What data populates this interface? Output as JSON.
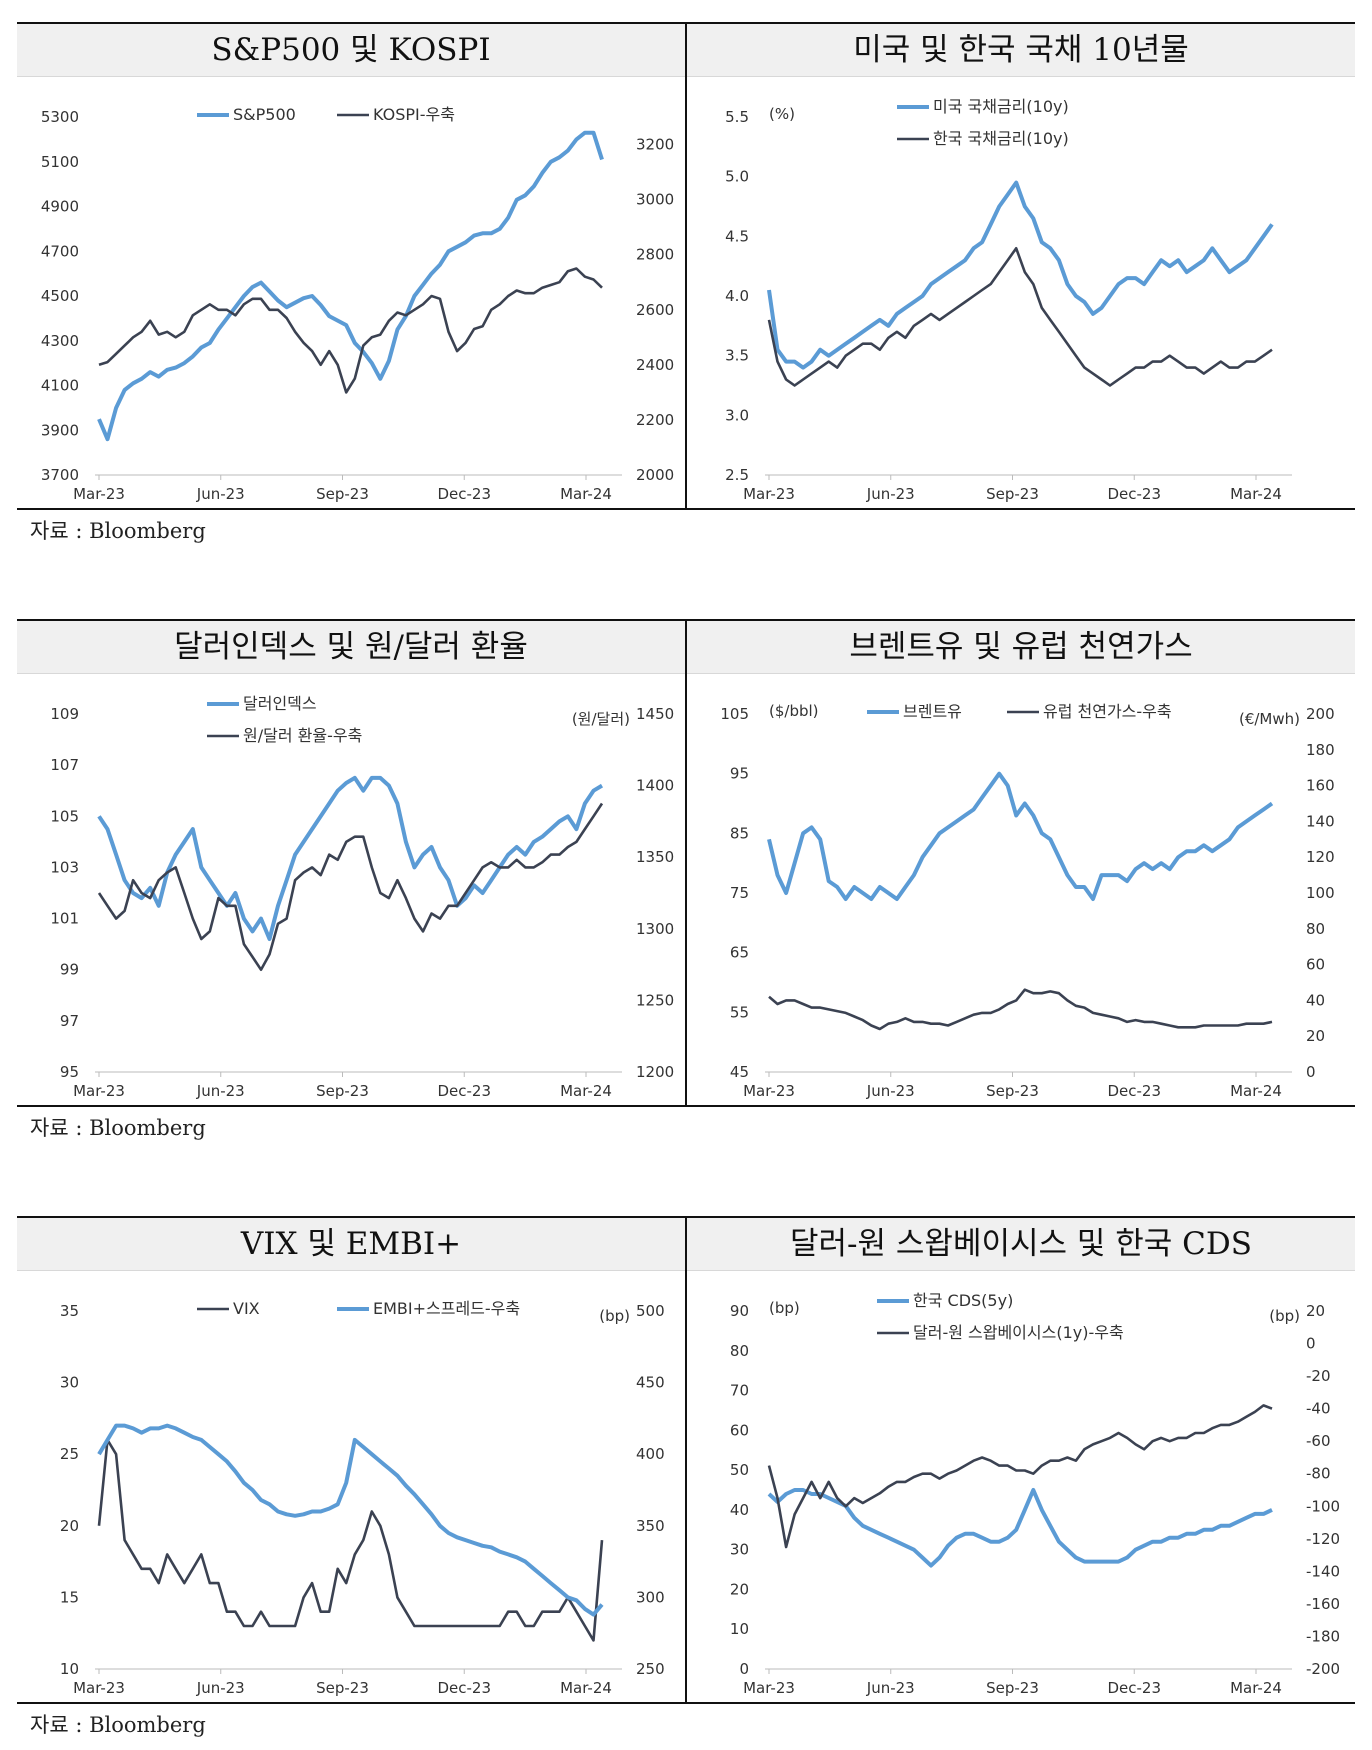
{
  "source_note": "자료 : Bloomberg",
  "colors": {
    "blue": "#5b9bd5",
    "dark": "#3b4252"
  },
  "chart_data": [
    {
      "id": "c1",
      "type": "line",
      "title": "S&P500 및 KOSPI",
      "x_ticks": [
        "Mar-23",
        "Jun-23",
        "Sep-23",
        "Dec-23",
        "Mar-24"
      ],
      "left_axis": {
        "min": 3700,
        "max": 5300,
        "ticks": [
          "3700",
          "3900",
          "4100",
          "4300",
          "4500",
          "4700",
          "4900",
          "5100",
          "5300"
        ]
      },
      "right_axis": {
        "min": 2000,
        "max": 3300,
        "ticks": [
          "2000",
          "2200",
          "2400",
          "2600",
          "2800",
          "3000",
          "3200"
        ]
      },
      "unit_left": "",
      "unit_right": "",
      "series": [
        {
          "name": "S&P500",
          "color": "blue",
          "axis": "left",
          "values": [
            3950,
            3860,
            4000,
            4080,
            4110,
            4130,
            4160,
            4140,
            4170,
            4180,
            4200,
            4230,
            4270,
            4290,
            4350,
            4400,
            4450,
            4500,
            4540,
            4560,
            4520,
            4480,
            4450,
            4470,
            4490,
            4500,
            4460,
            4410,
            4390,
            4370,
            4290,
            4250,
            4200,
            4130,
            4210,
            4350,
            4410,
            4500,
            4550,
            4600,
            4640,
            4700,
            4720,
            4740,
            4770,
            4780,
            4780,
            4800,
            4850,
            4930,
            4950,
            4990,
            5050,
            5100,
            5120,
            5150,
            5200,
            5230,
            5230,
            5110
          ]
        },
        {
          "name": "KOSPI-우축",
          "color": "dark",
          "axis": "right",
          "values": [
            2400,
            2410,
            2440,
            2470,
            2500,
            2520,
            2560,
            2510,
            2520,
            2500,
            2520,
            2580,
            2600,
            2620,
            2600,
            2600,
            2580,
            2620,
            2640,
            2640,
            2600,
            2600,
            2570,
            2520,
            2480,
            2450,
            2400,
            2450,
            2400,
            2300,
            2350,
            2470,
            2500,
            2510,
            2560,
            2590,
            2580,
            2600,
            2620,
            2650,
            2640,
            2520,
            2450,
            2480,
            2530,
            2540,
            2600,
            2620,
            2650,
            2670,
            2660,
            2660,
            2680,
            2690,
            2700,
            2740,
            2750,
            2720,
            2710,
            2680
          ]
        }
      ]
    },
    {
      "id": "c2",
      "type": "line",
      "title": "미국 및 한국 국채 10년물",
      "x_ticks": [
        "Mar-23",
        "Jun-23",
        "Sep-23",
        "Dec-23",
        "Mar-24"
      ],
      "left_axis": {
        "min": 2.5,
        "max": 5.5,
        "ticks": [
          "2.5",
          "3.0",
          "3.5",
          "4.0",
          "4.5",
          "5.0",
          "5.5"
        ]
      },
      "right_axis": null,
      "unit_left": "(%)",
      "unit_right": "",
      "series": [
        {
          "name": "미국 국채금리(10y)",
          "color": "blue",
          "axis": "left",
          "values": [
            4.05,
            3.55,
            3.45,
            3.45,
            3.4,
            3.45,
            3.55,
            3.5,
            3.55,
            3.6,
            3.65,
            3.7,
            3.75,
            3.8,
            3.75,
            3.85,
            3.9,
            3.95,
            4.0,
            4.1,
            4.15,
            4.2,
            4.25,
            4.3,
            4.4,
            4.45,
            4.6,
            4.75,
            4.85,
            4.95,
            4.75,
            4.65,
            4.45,
            4.4,
            4.3,
            4.1,
            4.0,
            3.95,
            3.85,
            3.9,
            4.0,
            4.1,
            4.15,
            4.15,
            4.1,
            4.2,
            4.3,
            4.25,
            4.3,
            4.2,
            4.25,
            4.3,
            4.4,
            4.3,
            4.2,
            4.25,
            4.3,
            4.4,
            4.5,
            4.6
          ]
        },
        {
          "name": "한국 국채금리(10y)",
          "color": "dark",
          "axis": "left",
          "values": [
            3.8,
            3.45,
            3.3,
            3.25,
            3.3,
            3.35,
            3.4,
            3.45,
            3.4,
            3.5,
            3.55,
            3.6,
            3.6,
            3.55,
            3.65,
            3.7,
            3.65,
            3.75,
            3.8,
            3.85,
            3.8,
            3.85,
            3.9,
            3.95,
            4.0,
            4.05,
            4.1,
            4.2,
            4.3,
            4.4,
            4.2,
            4.1,
            3.9,
            3.8,
            3.7,
            3.6,
            3.5,
            3.4,
            3.35,
            3.3,
            3.25,
            3.3,
            3.35,
            3.4,
            3.4,
            3.45,
            3.45,
            3.5,
            3.45,
            3.4,
            3.4,
            3.35,
            3.4,
            3.45,
            3.4,
            3.4,
            3.45,
            3.45,
            3.5,
            3.55
          ]
        }
      ]
    },
    {
      "id": "c3",
      "type": "line",
      "title": "달러인덱스 및 원/달러 환율",
      "x_ticks": [
        "Mar-23",
        "Jun-23",
        "Sep-23",
        "Dec-23",
        "Mar-24"
      ],
      "left_axis": {
        "min": 95,
        "max": 109,
        "ticks": [
          "95",
          "97",
          "99",
          "101",
          "103",
          "105",
          "107",
          "109"
        ]
      },
      "right_axis": {
        "min": 1200,
        "max": 1450,
        "ticks": [
          "1200",
          "1250",
          "1300",
          "1350",
          "1400",
          "1450"
        ]
      },
      "unit_left": "",
      "unit_right": "(원/달러)",
      "series": [
        {
          "name": "달러인덱스",
          "color": "blue",
          "axis": "left",
          "values": [
            105.0,
            104.5,
            103.5,
            102.5,
            102.0,
            101.8,
            102.2,
            101.5,
            102.8,
            103.5,
            104.0,
            104.5,
            103.0,
            102.5,
            102.0,
            101.5,
            102.0,
            101.0,
            100.5,
            101.0,
            100.2,
            101.5,
            102.5,
            103.5,
            104.0,
            104.5,
            105.0,
            105.5,
            106.0,
            106.3,
            106.5,
            106.0,
            106.5,
            106.5,
            106.2,
            105.5,
            104.0,
            103.0,
            103.5,
            103.8,
            103.0,
            102.5,
            101.5,
            101.8,
            102.3,
            102.0,
            102.5,
            103.0,
            103.5,
            103.8,
            103.5,
            104.0,
            104.2,
            104.5,
            104.8,
            105.0,
            104.5,
            105.5,
            106.0,
            106.2
          ]
        },
        {
          "name": "원/달러 환율-우축",
          "color": "dark",
          "axis": "left",
          "values": [
            102.0,
            101.5,
            101.0,
            101.3,
            102.5,
            102.0,
            101.8,
            102.5,
            102.8,
            103.0,
            102.0,
            101.0,
            100.2,
            100.5,
            101.8,
            101.5,
            101.5,
            100.0,
            99.5,
            99.0,
            99.6,
            100.8,
            101.0,
            102.5,
            102.8,
            103.0,
            102.7,
            103.5,
            103.3,
            104.0,
            104.2,
            104.2,
            103.0,
            102.0,
            101.8,
            102.5,
            101.8,
            101.0,
            100.5,
            101.2,
            101.0,
            101.5,
            101.5,
            102.0,
            102.5,
            103.0,
            103.2,
            103.0,
            103.0,
            103.3,
            103.0,
            103.0,
            103.2,
            103.5,
            103.5,
            103.8,
            104.0,
            104.5,
            105.0,
            105.5
          ]
        }
      ]
    },
    {
      "id": "c4",
      "type": "line",
      "title": "브렌트유 및 유럽 천연가스",
      "x_ticks": [
        "Mar-23",
        "Jun-23",
        "Sep-23",
        "Dec-23",
        "Mar-24"
      ],
      "left_axis": {
        "min": 45,
        "max": 105,
        "ticks": [
          "45",
          "55",
          "65",
          "75",
          "85",
          "95",
          "105"
        ]
      },
      "right_axis": {
        "min": 0,
        "max": 200,
        "ticks": [
          "0",
          "20",
          "40",
          "60",
          "80",
          "100",
          "120",
          "140",
          "160",
          "180",
          "200"
        ]
      },
      "unit_left": "($/bbl)",
      "unit_right": "(€/Mwh)",
      "series": [
        {
          "name": "브렌트유",
          "color": "blue",
          "axis": "left",
          "values": [
            84,
            78,
            75,
            80,
            85,
            86,
            84,
            77,
            76,
            74,
            76,
            75,
            74,
            76,
            75,
            74,
            76,
            78,
            81,
            83,
            85,
            86,
            87,
            88,
            89,
            91,
            93,
            95,
            93,
            88,
            90,
            88,
            85,
            84,
            81,
            78,
            76,
            76,
            74,
            78,
            78,
            78,
            77,
            79,
            80,
            79,
            80,
            79,
            81,
            82,
            82,
            83,
            82,
            83,
            84,
            86,
            87,
            88,
            89,
            90
          ]
        },
        {
          "name": "유럽 천연가스-우축",
          "color": "dark",
          "axis": "right",
          "values": [
            42,
            38,
            40,
            40,
            38,
            36,
            36,
            35,
            34,
            33,
            31,
            29,
            26,
            24,
            27,
            28,
            30,
            28,
            28,
            27,
            27,
            26,
            28,
            30,
            32,
            33,
            33,
            35,
            38,
            40,
            46,
            44,
            44,
            45,
            44,
            40,
            37,
            36,
            33,
            32,
            31,
            30,
            28,
            29,
            28,
            28,
            27,
            26,
            25,
            25,
            25,
            26,
            26,
            26,
            26,
            26,
            27,
            27,
            27,
            28
          ]
        }
      ]
    },
    {
      "id": "c5",
      "type": "line",
      "title": "VIX 및 EMBI+",
      "x_ticks": [
        "Mar-23",
        "Jun-23",
        "Sep-23",
        "Dec-23",
        "Mar-24"
      ],
      "left_axis": {
        "min": 10,
        "max": 35,
        "ticks": [
          "10",
          "15",
          "20",
          "25",
          "30",
          "35"
        ]
      },
      "right_axis": {
        "min": 250,
        "max": 500,
        "ticks": [
          "250",
          "300",
          "350",
          "400",
          "450",
          "500"
        ]
      },
      "unit_left": "",
      "unit_right": "(bp)",
      "series": [
        {
          "name": "VIX",
          "color": "dark",
          "axis": "left",
          "values": [
            20,
            26,
            25,
            19,
            18,
            17,
            17,
            16,
            18,
            17,
            16,
            17,
            18,
            16,
            16,
            14,
            14,
            13,
            13,
            14,
            13,
            13,
            13,
            13,
            15,
            16,
            14,
            14,
            17,
            16,
            18,
            19,
            21,
            20,
            18,
            15,
            14,
            13,
            13,
            13,
            13,
            13,
            13,
            13,
            13,
            13,
            13,
            13,
            14,
            14,
            13,
            13,
            14,
            14,
            14,
            15,
            14,
            13,
            12,
            19
          ]
        },
        {
          "name": "EMBI+스프레드-우축",
          "color": "blue",
          "axis": "right",
          "values": [
            400,
            410,
            420,
            420,
            418,
            415,
            418,
            418,
            420,
            418,
            415,
            412,
            410,
            405,
            400,
            395,
            388,
            380,
            375,
            368,
            365,
            360,
            358,
            357,
            358,
            360,
            360,
            362,
            365,
            380,
            410,
            405,
            400,
            395,
            390,
            385,
            378,
            372,
            365,
            358,
            350,
            345,
            342,
            340,
            338,
            336,
            335,
            332,
            330,
            328,
            325,
            320,
            315,
            310,
            305,
            300,
            298,
            292,
            288,
            295
          ]
        }
      ]
    },
    {
      "id": "c6",
      "type": "line",
      "title": "달러-원 스왑베이시스 및 한국 CDS",
      "x_ticks": [
        "Mar-23",
        "Jun-23",
        "Sep-23",
        "Dec-23",
        "Mar-24"
      ],
      "left_axis": {
        "min": 0,
        "max": 90,
        "ticks": [
          "0",
          "10",
          "20",
          "30",
          "40",
          "50",
          "60",
          "70",
          "80",
          "90"
        ]
      },
      "right_axis": {
        "min": -200,
        "max": 20,
        "ticks": [
          "-200",
          "-180",
          "-160",
          "-140",
          "-120",
          "-100",
          "-80",
          "-60",
          "-40",
          "-20",
          "0",
          "20"
        ]
      },
      "unit_left": "(bp)",
      "unit_right": "(bp)",
      "series": [
        {
          "name": "한국 CDS(5y)",
          "color": "blue",
          "axis": "left",
          "values": [
            44,
            42,
            44,
            45,
            45,
            44,
            44,
            43,
            42,
            41,
            38,
            36,
            35,
            34,
            33,
            32,
            31,
            30,
            28,
            26,
            28,
            31,
            33,
            34,
            34,
            33,
            32,
            32,
            33,
            35,
            40,
            45,
            40,
            36,
            32,
            30,
            28,
            27,
            27,
            27,
            27,
            27,
            28,
            30,
            31,
            32,
            32,
            33,
            33,
            34,
            34,
            35,
            35,
            36,
            36,
            37,
            38,
            39,
            39,
            40
          ]
        },
        {
          "name": "달러-원 스왑베이시스(1y)-우축",
          "color": "dark",
          "axis": "right",
          "values": [
            -75,
            -95,
            -125,
            -105,
            -95,
            -85,
            -95,
            -85,
            -95,
            -100,
            -95,
            -98,
            -95,
            -92,
            -88,
            -85,
            -85,
            -82,
            -80,
            -80,
            -83,
            -80,
            -78,
            -75,
            -72,
            -70,
            -72,
            -75,
            -75,
            -78,
            -78,
            -80,
            -75,
            -72,
            -72,
            -70,
            -72,
            -65,
            -62,
            -60,
            -58,
            -55,
            -58,
            -62,
            -65,
            -60,
            -58,
            -60,
            -58,
            -58,
            -55,
            -55,
            -52,
            -50,
            -50,
            -48,
            -45,
            -42,
            -38,
            -40
          ]
        }
      ]
    }
  ]
}
